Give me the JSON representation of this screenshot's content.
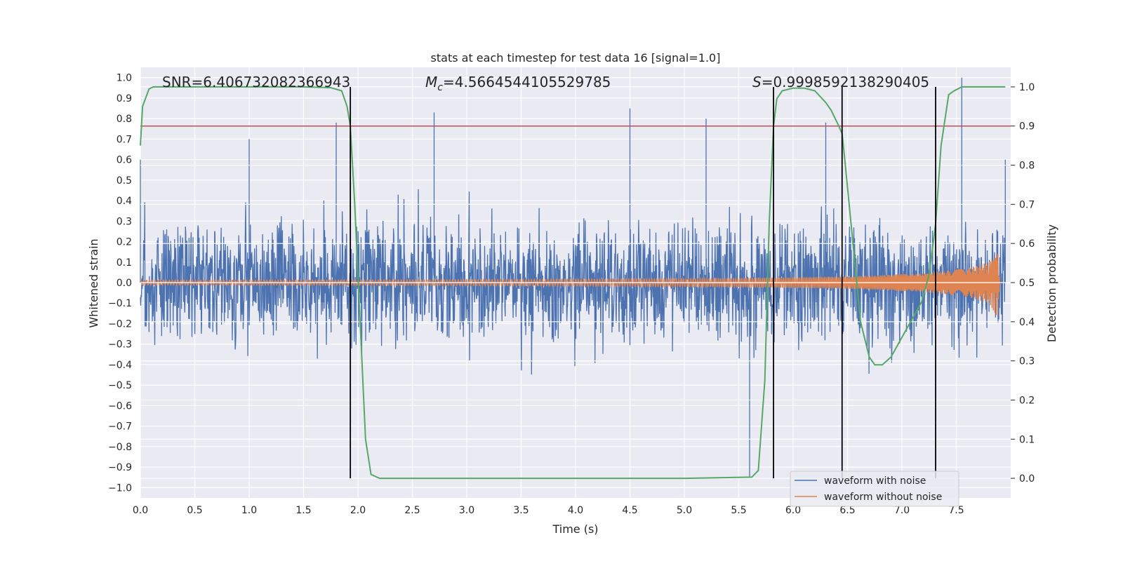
{
  "chart_data": {
    "type": "line",
    "title": "stats at each timestep for test data 16 [signal=1.0]",
    "xlabel": "Time (s)",
    "ylabel": "Whitened strain",
    "y2label": "Detection probability",
    "xlim": [
      0.0,
      8.0
    ],
    "ylim": [
      -1.05,
      1.05
    ],
    "y2lim": [
      -0.05,
      1.05
    ],
    "xticks": [
      "0.0",
      "0.5",
      "1.0",
      "1.5",
      "2.0",
      "2.5",
      "3.0",
      "3.5",
      "4.0",
      "4.5",
      "5.0",
      "5.5",
      "6.0",
      "6.5",
      "7.0",
      "7.5"
    ],
    "yticks": [
      "−1.0",
      "−0.9",
      "−0.8",
      "−0.7",
      "−0.6",
      "−0.5",
      "−0.4",
      "−0.3",
      "−0.2",
      "−0.1",
      "0.0",
      "0.1",
      "0.2",
      "0.3",
      "0.4",
      "0.5",
      "0.6",
      "0.7",
      "0.8",
      "0.9",
      "1.0"
    ],
    "y2ticks": [
      "0.0",
      "0.1",
      "0.2",
      "0.3",
      "0.4",
      "0.5",
      "0.6",
      "0.7",
      "0.8",
      "0.9",
      "1.0"
    ],
    "grid": true,
    "legend_placement": "lower-right",
    "annotations": {
      "snr": "SNR=6.406732082366943",
      "mc_symbol": "M",
      "mc_sub": "c",
      "mc_value": "=4.5664544105529785",
      "s_symbol": "S",
      "s_value": "=0.9998592138290405"
    },
    "threshold": {
      "value": 0.9,
      "axis": "detection probability",
      "color": "#c44e52"
    },
    "vertical_markers_s": [
      1.93,
      5.82,
      6.45,
      7.31
    ],
    "series": [
      {
        "name": "waveform with noise",
        "color": "#4c72b0",
        "description": "dense noisy whitened strain, roughly symmetric, peaks near ±0.85",
        "peak_envelope": [
          [
            0.0,
            0.6
          ],
          [
            1.0,
            0.7
          ],
          [
            1.8,
            0.78
          ],
          [
            2.7,
            0.83
          ],
          [
            4.5,
            0.85
          ],
          [
            5.2,
            0.8
          ],
          [
            5.6,
            -0.95
          ],
          [
            6.3,
            0.78
          ],
          [
            7.55,
            1.0
          ],
          [
            7.95,
            0.6
          ]
        ]
      },
      {
        "name": "waveform without noise",
        "color": "#dd8452",
        "description": "chirp signal, amplitude grows from ~0.01 to ~0.17 at merger near 7.9 s",
        "amplitude": [
          [
            0.0,
            0.012
          ],
          [
            2.0,
            0.013
          ],
          [
            4.0,
            0.017
          ],
          [
            5.5,
            0.022
          ],
          [
            6.5,
            0.03
          ],
          [
            7.2,
            0.045
          ],
          [
            7.6,
            0.07
          ],
          [
            7.8,
            0.1
          ],
          [
            7.88,
            0.17
          ],
          [
            7.9,
            0.0
          ]
        ]
      },
      {
        "name": "Detection probability",
        "color": "#55a868",
        "axis": "right",
        "x": [
          0.0,
          0.02,
          0.08,
          0.12,
          0.5,
          1.0,
          1.5,
          1.75,
          1.85,
          1.9,
          1.93,
          1.97,
          2.02,
          2.07,
          2.12,
          2.2,
          5.0,
          5.62,
          5.68,
          5.74,
          5.78,
          5.82,
          5.85,
          5.9,
          6.0,
          6.1,
          6.2,
          6.3,
          6.35,
          6.42,
          6.45,
          6.48,
          6.55,
          6.62,
          6.7,
          6.75,
          6.82,
          6.9,
          7.0,
          7.1,
          7.18,
          7.25,
          7.31,
          7.36,
          7.43,
          7.48,
          7.55,
          7.7,
          7.95
        ],
        "y": [
          0.85,
          0.95,
          0.995,
          1.0,
          1.0,
          1.0,
          1.0,
          0.998,
          0.99,
          0.95,
          0.9,
          0.7,
          0.4,
          0.1,
          0.01,
          0.0,
          0.0,
          0.003,
          0.02,
          0.25,
          0.65,
          0.9,
          0.97,
          0.99,
          0.997,
          0.997,
          0.99,
          0.96,
          0.94,
          0.9,
          0.88,
          0.8,
          0.6,
          0.4,
          0.31,
          0.29,
          0.29,
          0.31,
          0.36,
          0.41,
          0.45,
          0.52,
          0.65,
          0.85,
          0.98,
          0.99,
          1.0,
          1.0,
          1.0
        ]
      }
    ]
  }
}
